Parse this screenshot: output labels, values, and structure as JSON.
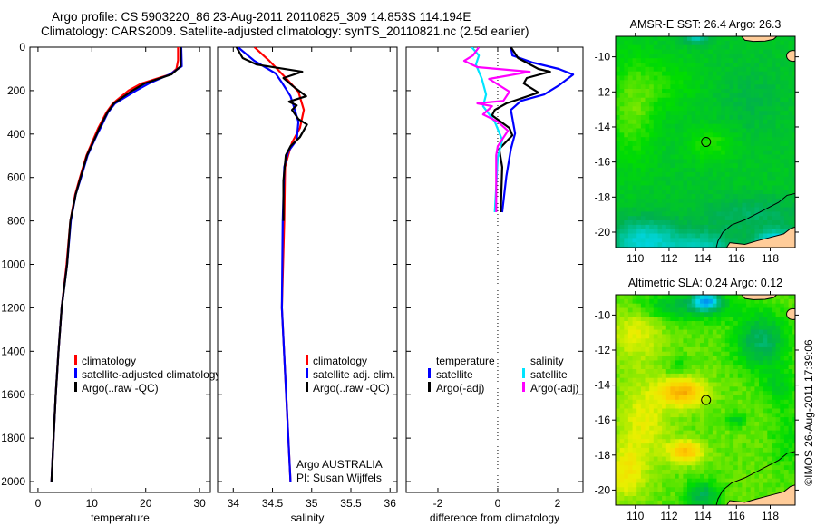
{
  "header": {
    "title_line1": "Argo profile: CS 5903220_86 23-Aug-2011 20110825_309 14.853S 114.194E",
    "title_line2": "Climatology: CARS2009. Satellite-adjusted climatology: synTS_20110821.nc (2.5d earlier)"
  },
  "footer": {
    "credit": "©IMOS 26-Aug-2011 17:39:06"
  },
  "colors": {
    "climatology": "#ff0000",
    "satellite": "#0000ff",
    "argo": "#000000",
    "sal_satellite": "#00e5ff",
    "sal_argo": "#ff00ff",
    "land": "#ffcc99"
  },
  "chart_data": [
    {
      "type": "line",
      "xlabel": "temperature",
      "ylabel": "",
      "xlim": [
        -1.5,
        32
      ],
      "ylim": [
        0,
        2050
      ],
      "y_reversed": true,
      "xticks": [
        0,
        10,
        20,
        30
      ],
      "yticks": [
        0,
        200,
        400,
        600,
        800,
        1000,
        1200,
        1400,
        1600,
        1800,
        2000
      ],
      "legend": [
        "climatology",
        "satellite-adjusted climatology",
        "Argo(..raw -QC)"
      ],
      "series": [
        {
          "name": "climatology",
          "color": "#ff0000",
          "depth": [
            0,
            60,
            100,
            125,
            167,
            200,
            259,
            300,
            372,
            400,
            498,
            600,
            678,
            800,
            1000,
            1200,
            1400,
            1600,
            1800,
            2000
          ],
          "values": [
            26.0,
            26.0,
            25.7,
            24.6,
            19.2,
            16.8,
            13.9,
            12.7,
            11.2,
            10.7,
            9.0,
            7.8,
            6.9,
            6.0,
            5.3,
            4.4,
            3.8,
            3.3,
            2.9,
            2.5
          ]
        },
        {
          "name": "satellite-adjusted climatology",
          "color": "#0000ff",
          "depth": [
            0,
            88,
            125,
            167,
            200,
            259,
            300,
            372,
            400,
            498,
            600,
            678,
            800,
            1000,
            1200,
            1400,
            1600,
            1800,
            2000
          ],
          "values": [
            26.6,
            26.7,
            24.5,
            20.6,
            18.2,
            14.3,
            13.0,
            11.6,
            11.0,
            9.2,
            8.0,
            7.0,
            6.1,
            5.4,
            4.4,
            3.8,
            3.3,
            2.9,
            2.5
          ]
        },
        {
          "name": "Argo(..raw -QC)",
          "color": "#000000",
          "depth": [
            0,
            88,
            125,
            167,
            200,
            259,
            300,
            372,
            400,
            498,
            600,
            678,
            800,
            1000,
            1200,
            1400,
            1600,
            1800,
            2000
          ],
          "values": [
            26.5,
            26.5,
            24.8,
            19.8,
            17.5,
            14.1,
            12.9,
            11.4,
            10.9,
            9.1,
            7.9,
            7.0,
            6.0,
            5.4,
            4.4,
            3.8,
            3.3,
            2.9,
            2.5
          ]
        }
      ]
    },
    {
      "type": "line",
      "xlabel": "salinity",
      "xlim": [
        33.8,
        36.09
      ],
      "ylim": [
        0,
        2050
      ],
      "y_reversed": true,
      "xticks": [
        34,
        34.5,
        35,
        35.5,
        36
      ],
      "legend": [
        "climatology",
        "satellite adj. clim.",
        "Argo(..raw -QC)"
      ],
      "annotation": [
        "Argo AUSTRALIA",
        "PI: Susan Wijffels"
      ],
      "series": [
        {
          "name": "climatology",
          "color": "#ff0000",
          "depth": [
            0,
            63,
            134,
            205,
            289,
            372,
            439,
            498,
            552,
            800,
            1200,
            2000
          ],
          "values": [
            34.27,
            34.46,
            34.65,
            34.83,
            34.9,
            34.85,
            34.75,
            34.7,
            34.66,
            34.65,
            34.62,
            34.73
          ]
        },
        {
          "name": "satellite adj. clim.",
          "color": "#0000ff",
          "depth": [
            0,
            63,
            121,
            163,
            226,
            272,
            343,
            427,
            481,
            552,
            803,
            1200,
            2000
          ],
          "values": [
            34.06,
            34.27,
            34.54,
            34.62,
            34.73,
            34.77,
            34.83,
            34.81,
            34.7,
            34.65,
            34.63,
            34.62,
            34.73
          ]
        },
        {
          "name": "Argo(..raw -QC)",
          "color": "#000000",
          "depth": [
            0,
            50,
            80,
            113,
            142,
            176,
            226,
            251,
            268,
            289,
            331,
            356,
            414,
            456,
            498,
            615,
            800
          ],
          "values": [
            34.04,
            34.12,
            34.3,
            34.88,
            34.64,
            34.75,
            34.93,
            34.71,
            34.81,
            34.75,
            34.83,
            34.94,
            34.85,
            34.73,
            34.67,
            34.64,
            34.64
          ]
        }
      ]
    },
    {
      "type": "line",
      "xlabel": "difference from climatology",
      "xlim": [
        -3.06,
        2.85
      ],
      "ylim": [
        0,
        2050
      ],
      "y_reversed": true,
      "xticks": [
        -2,
        0,
        2
      ],
      "legend_headers": [
        "temperature",
        "salinity"
      ],
      "legend": [
        "satellite",
        "Argo(-adj)",
        "satellite",
        "Argo(-adj)"
      ],
      "series": [
        {
          "name": "temperature satellite",
          "color": "#0000ff",
          "depth": [
            0,
            38,
            71,
            100,
            126,
            176,
            218,
            247,
            289,
            397,
            469,
            594,
            760
          ],
          "values": [
            0.44,
            0.49,
            1.17,
            2.04,
            2.52,
            2.04,
            1.55,
            0.78,
            0.44,
            0.58,
            0.44,
            0.29,
            0.15
          ]
        },
        {
          "name": "temperature Argo(-adj)",
          "color": "#000000",
          "depth": [
            0,
            50,
            100,
            113,
            142,
            167,
            209,
            259,
            289,
            314,
            372,
            406,
            469,
            552,
            760
          ],
          "values": [
            0.44,
            0.68,
            1.36,
            1.75,
            0.97,
            0.87,
            1.36,
            0.29,
            -0.1,
            -0.19,
            0.39,
            0.49,
            0.05,
            0.15,
            0.1
          ]
        },
        {
          "name": "salinity satellite",
          "color": "#00e5ff",
          "depth": [
            0,
            38,
            80,
            146,
            218,
            272,
            343,
            427,
            510,
            760
          ],
          "values": [
            -0.87,
            -0.63,
            -0.73,
            -0.53,
            -0.39,
            -0.49,
            -0.1,
            0.15,
            0,
            -0.1
          ]
        },
        {
          "name": "salinity Argo(-adj)",
          "color": "#ff00ff",
          "depth": [
            0,
            38,
            63,
            92,
            113,
            146,
            205,
            247,
            259,
            272,
            310,
            343,
            385,
            456,
            498,
            760
          ],
          "values": [
            -0.63,
            -0.83,
            -1.12,
            -0.68,
            1.07,
            -0.29,
            0.39,
            0.19,
            -0.68,
            -0.19,
            -0.49,
            0,
            0.34,
            0,
            -0.05,
            -0.05
          ]
        }
      ]
    },
    {
      "type": "heatmap",
      "title": "AMSR-E SST: 26.4 Argo: 26.3",
      "xlim": [
        108.83,
        119.48
      ],
      "ylim": [
        -20.88,
        -8.83
      ],
      "xticks": [
        110,
        112,
        114,
        116,
        118
      ],
      "yticks": [
        -10,
        -12,
        -14,
        -16,
        -18,
        -20
      ],
      "marker": {
        "lon": 114.194,
        "lat": -14.853
      }
    },
    {
      "type": "heatmap",
      "title": "Altimetric SLA: 0.24 Argo: 0.12",
      "xlim": [
        108.83,
        119.48
      ],
      "ylim": [
        -20.86,
        -8.84
      ],
      "xticks": [
        110,
        112,
        114,
        116,
        118
      ],
      "yticks": [
        -10,
        -12,
        -14,
        -16,
        -18,
        -20
      ],
      "marker": {
        "lon": 114.194,
        "lat": -14.853
      }
    }
  ]
}
